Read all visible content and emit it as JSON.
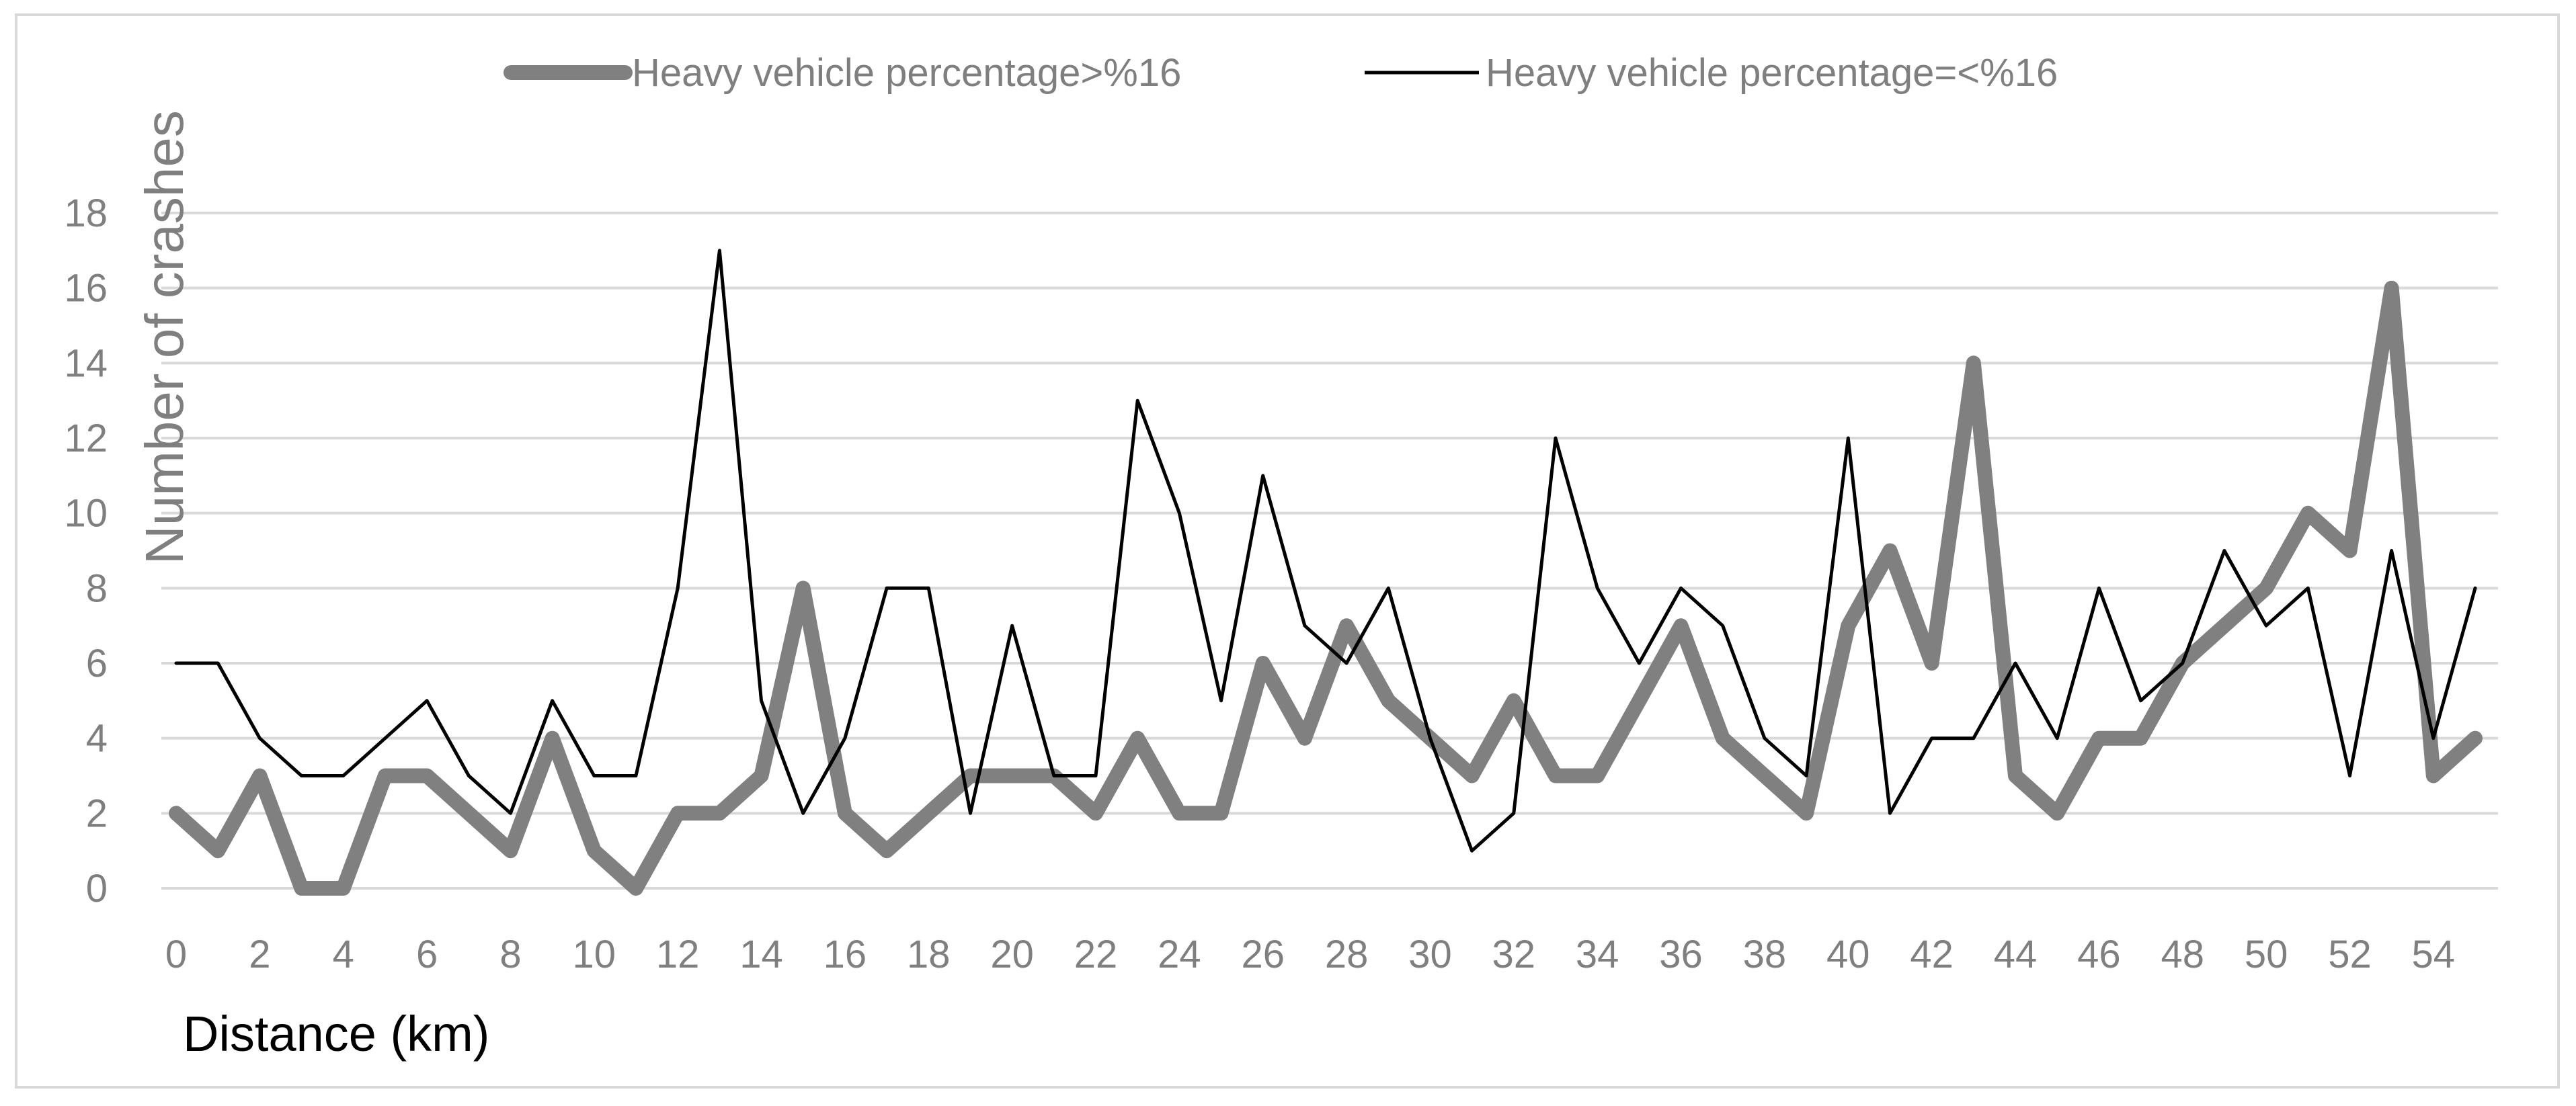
{
  "chart_data": {
    "type": "line",
    "title": "",
    "xlabel": "Distance (km)",
    "ylabel": "Number of crashes",
    "xlim": [
      0,
      55
    ],
    "ylim": [
      0,
      18
    ],
    "x_ticks": [
      0,
      2,
      4,
      6,
      8,
      10,
      12,
      14,
      16,
      18,
      20,
      22,
      24,
      26,
      28,
      30,
      32,
      34,
      36,
      38,
      40,
      42,
      44,
      46,
      48,
      50,
      52,
      54
    ],
    "y_ticks": [
      0,
      2,
      4,
      6,
      8,
      10,
      12,
      14,
      16,
      18
    ],
    "grid": "horizontal",
    "legend_position": "top",
    "x": [
      0,
      1,
      2,
      3,
      4,
      5,
      6,
      7,
      8,
      9,
      10,
      11,
      12,
      13,
      14,
      15,
      16,
      17,
      18,
      19,
      20,
      21,
      22,
      23,
      24,
      25,
      26,
      27,
      28,
      29,
      30,
      31,
      32,
      33,
      34,
      35,
      36,
      37,
      38,
      39,
      40,
      41,
      42,
      43,
      44,
      45,
      46,
      47,
      48,
      49,
      50,
      51,
      52,
      53,
      54,
      55
    ],
    "series": [
      {
        "name": "Heavy vehicle percentage>%16",
        "color": "#808080",
        "style": "thick",
        "values": [
          2,
          1,
          3,
          0,
          0,
          3,
          3,
          2,
          1,
          4,
          1,
          0,
          2,
          2,
          3,
          8,
          2,
          1,
          2,
          3,
          3,
          3,
          2,
          4,
          2,
          2,
          6,
          4,
          7,
          5,
          4,
          3,
          5,
          3,
          3,
          5,
          7,
          4,
          3,
          2,
          7,
          9,
          6,
          14,
          3,
          2,
          4,
          4,
          6,
          7,
          8,
          10,
          9,
          16,
          3,
          4
        ]
      },
      {
        "name": "Heavy vehicle percentage=<%16",
        "color": "#000000",
        "style": "thin",
        "values": [
          6,
          6,
          4,
          3,
          3,
          4,
          5,
          3,
          2,
          5,
          3,
          3,
          8,
          17,
          5,
          2,
          4,
          8,
          8,
          2,
          7,
          3,
          3,
          13,
          10,
          5,
          11,
          7,
          6,
          8,
          4,
          1,
          2,
          12,
          8,
          6,
          8,
          7,
          4,
          3,
          12,
          2,
          4,
          4,
          6,
          4,
          8,
          5,
          6,
          9,
          7,
          8,
          3,
          9,
          4,
          8
        ]
      }
    ]
  }
}
